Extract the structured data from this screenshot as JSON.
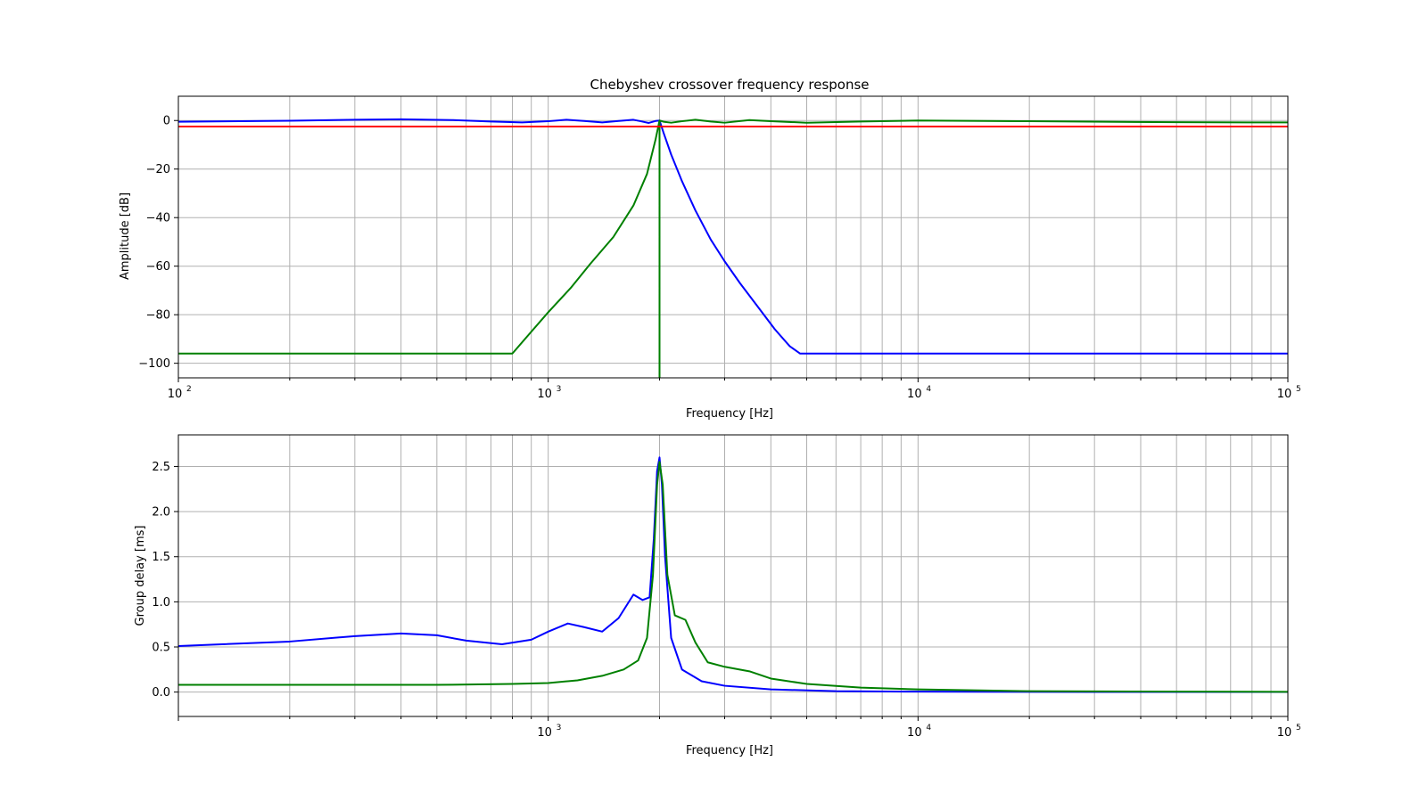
{
  "chart_data": [
    {
      "type": "line",
      "title": "Chebyshev crossover frequency response",
      "xlabel": "Frequency [Hz]",
      "ylabel": "Amplitude [dB]",
      "xscale": "log",
      "xlim": [
        100,
        100000
      ],
      "ylim": [
        -106,
        10
      ],
      "yticks": [
        0,
        -20,
        -40,
        -60,
        -80,
        -100
      ],
      "ytick_labels": [
        "0",
        "−20",
        "−40",
        "−60",
        "−80",
        "−100"
      ],
      "xticks": [
        100,
        1000,
        10000,
        100000
      ],
      "xtick_labels": [
        {
          "base": "10",
          "exp": "2"
        },
        {
          "base": "10",
          "exp": "3"
        },
        {
          "base": "10",
          "exp": "4"
        },
        {
          "base": "10",
          "exp": "5"
        }
      ],
      "grid": true,
      "series": [
        {
          "color": "#0000ff",
          "x": [
            100,
            200,
            300,
            400,
            550,
            700,
            850,
            1000,
            1120,
            1250,
            1400,
            1550,
            1700,
            1780,
            1870,
            1950,
            2000,
            2050,
            2150,
            2300,
            2500,
            2750,
            3000,
            3300,
            3700,
            4100,
            4500,
            4800,
            100000
          ],
          "y": [
            -0.5,
            -0.1,
            0.3,
            0.5,
            0.2,
            -0.4,
            -0.8,
            -0.3,
            0.3,
            -0.2,
            -0.8,
            -0.2,
            0.3,
            -0.3,
            -1.0,
            -0.2,
            0,
            -5,
            -14,
            -25,
            -37,
            -49,
            -58,
            -67,
            -77,
            -86,
            -93,
            -96,
            -96
          ]
        },
        {
          "color": "#008000",
          "x": [
            100,
            500,
            800,
            900,
            1000,
            1150,
            1300,
            1500,
            1700,
            1850,
            1950,
            2000,
            2000,
            2000,
            2050,
            2150,
            2300,
            2500,
            2750,
            3000,
            3500,
            4000,
            5000,
            7000,
            10000,
            20000,
            50000,
            100000
          ],
          "y": [
            -96,
            -96,
            -96,
            -87,
            -79,
            -69,
            -59,
            -48,
            -35,
            -22,
            -8,
            0,
            -106,
            0,
            -0.5,
            -0.9,
            -0.3,
            0.3,
            -0.4,
            -0.9,
            0.2,
            -0.3,
            -0.9,
            -0.4,
            0,
            -0.3,
            -0.7,
            -0.8
          ]
        },
        {
          "color": "#ff0000",
          "x": [
            100,
            100000
          ],
          "y": [
            -2.5,
            -2.5
          ]
        }
      ]
    },
    {
      "type": "line",
      "title": "",
      "xlabel": "Frequency [Hz]",
      "ylabel": "Group delay [ms]",
      "xscale": "log",
      "xlim": [
        100,
        100000
      ],
      "ylim": [
        -0.27,
        2.85
      ],
      "yticks": [
        0.0,
        0.5,
        1.0,
        1.5,
        2.0,
        2.5
      ],
      "ytick_labels": [
        "0.0",
        "0.5",
        "1.0",
        "1.5",
        "2.0",
        "2.5"
      ],
      "xticks": [
        1000,
        10000,
        100000
      ],
      "xtick_labels": [
        {
          "base": "10",
          "exp": "3"
        },
        {
          "base": "10",
          "exp": "4"
        },
        {
          "base": "10",
          "exp": "5"
        }
      ],
      "grid": true,
      "series": [
        {
          "color": "#0000ff",
          "x": [
            100,
            200,
            300,
            400,
            500,
            600,
            750,
            900,
            1000,
            1130,
            1250,
            1400,
            1550,
            1700,
            1800,
            1880,
            1930,
            1970,
            2000,
            2030,
            2070,
            2150,
            2300,
            2600,
            3000,
            4000,
            6000,
            10000,
            30000,
            100000
          ],
          "y": [
            0.51,
            0.56,
            0.62,
            0.65,
            0.63,
            0.57,
            0.53,
            0.58,
            0.67,
            0.76,
            0.72,
            0.67,
            0.82,
            1.08,
            1.02,
            1.05,
            1.7,
            2.45,
            2.6,
            2.3,
            1.5,
            0.6,
            0.25,
            0.12,
            0.07,
            0.03,
            0.01,
            0.005,
            0.002,
            0.001
          ]
        },
        {
          "color": "#008000",
          "x": [
            100,
            500,
            800,
            1000,
            1200,
            1400,
            1600,
            1750,
            1850,
            1920,
            1970,
            2000,
            2040,
            2100,
            2200,
            2350,
            2500,
            2700,
            3000,
            3500,
            4000,
            5000,
            7000,
            10000,
            20000,
            50000,
            100000
          ],
          "y": [
            0.08,
            0.08,
            0.09,
            0.1,
            0.13,
            0.18,
            0.25,
            0.35,
            0.6,
            1.3,
            2.3,
            2.55,
            2.3,
            1.3,
            0.85,
            0.8,
            0.55,
            0.33,
            0.28,
            0.23,
            0.15,
            0.09,
            0.05,
            0.03,
            0.01,
            0.005,
            0.003
          ]
        }
      ]
    }
  ]
}
